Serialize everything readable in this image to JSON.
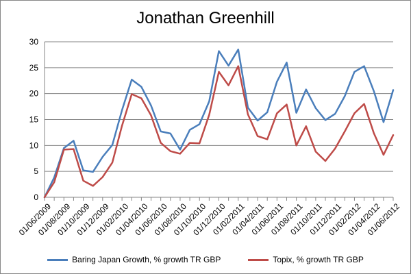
{
  "chart_data": {
    "type": "line",
    "title": "Jonathan Greenhill",
    "xlabel": "",
    "ylabel": "",
    "ylim": [
      0,
      30
    ],
    "yticks": [
      "0",
      "5",
      "10",
      "15",
      "20",
      "25",
      "30"
    ],
    "grid": "horizontal",
    "legend_position": "bottom",
    "categories": [
      "01/06/2009",
      "01/07/2009",
      "01/08/2009",
      "01/09/2009",
      "01/10/2009",
      "01/11/2009",
      "01/12/2009",
      "01/01/2010",
      "01/02/2010",
      "01/03/2010",
      "01/04/2010",
      "01/05/2010",
      "01/06/2010",
      "01/07/2010",
      "01/08/2010",
      "01/09/2010",
      "01/10/2010",
      "01/11/2010",
      "01/12/2010",
      "01/01/2011",
      "01/02/2011",
      "01/03/2011",
      "01/04/2011",
      "01/05/2011",
      "01/06/2011",
      "01/07/2011",
      "01/08/2011",
      "01/09/2011",
      "01/10/2011",
      "01/11/2011",
      "01/12/2011",
      "01/01/2012",
      "01/02/2012",
      "01/03/2012",
      "01/04/2012",
      "01/05/2012",
      "01/06/2012"
    ],
    "x_tick_labels": [
      "01/06/2009",
      "01/08/2009",
      "01/10/2009",
      "01/12/2009",
      "01/02/2010",
      "01/04/2010",
      "01/06/2010",
      "01/08/2010",
      "01/10/2010",
      "01/12/2010",
      "01/02/2011",
      "01/04/2011",
      "01/06/2011",
      "01/08/2011",
      "01/10/2011",
      "01/12/2011",
      "01/02/2012",
      "01/04/2012",
      "01/06/2012"
    ],
    "series": [
      {
        "name": "Baring Japan Growth, % growth TR GBP",
        "color": "#4a7ebb",
        "values": [
          0,
          3.8,
          9.5,
          10.9,
          5.2,
          4.9,
          7.8,
          10.1,
          16.8,
          22.7,
          21.3,
          17.7,
          12.7,
          12.3,
          9.2,
          13.0,
          14.1,
          18.5,
          28.2,
          25.4,
          28.5,
          17.3,
          14.8,
          16.4,
          22.3,
          26.0,
          16.3,
          20.8,
          17.2,
          14.9,
          16.1,
          19.5,
          24.2,
          25.3,
          20.5,
          14.5,
          20.7
        ]
      },
      {
        "name": "Topix, % growth TR GBP",
        "color": "#be4b48",
        "values": [
          0,
          2.9,
          9.2,
          9.3,
          3.2,
          2.2,
          3.9,
          6.7,
          13.8,
          19.9,
          19.1,
          15.8,
          10.5,
          8.9,
          8.4,
          10.5,
          10.4,
          15.9,
          24.2,
          21.6,
          25.3,
          16.0,
          11.8,
          11.2,
          16.2,
          17.9,
          10.0,
          13.7,
          8.8,
          7.0,
          9.4,
          12.7,
          16.2,
          18.0,
          12.4,
          8.2,
          12.0
        ]
      }
    ]
  }
}
